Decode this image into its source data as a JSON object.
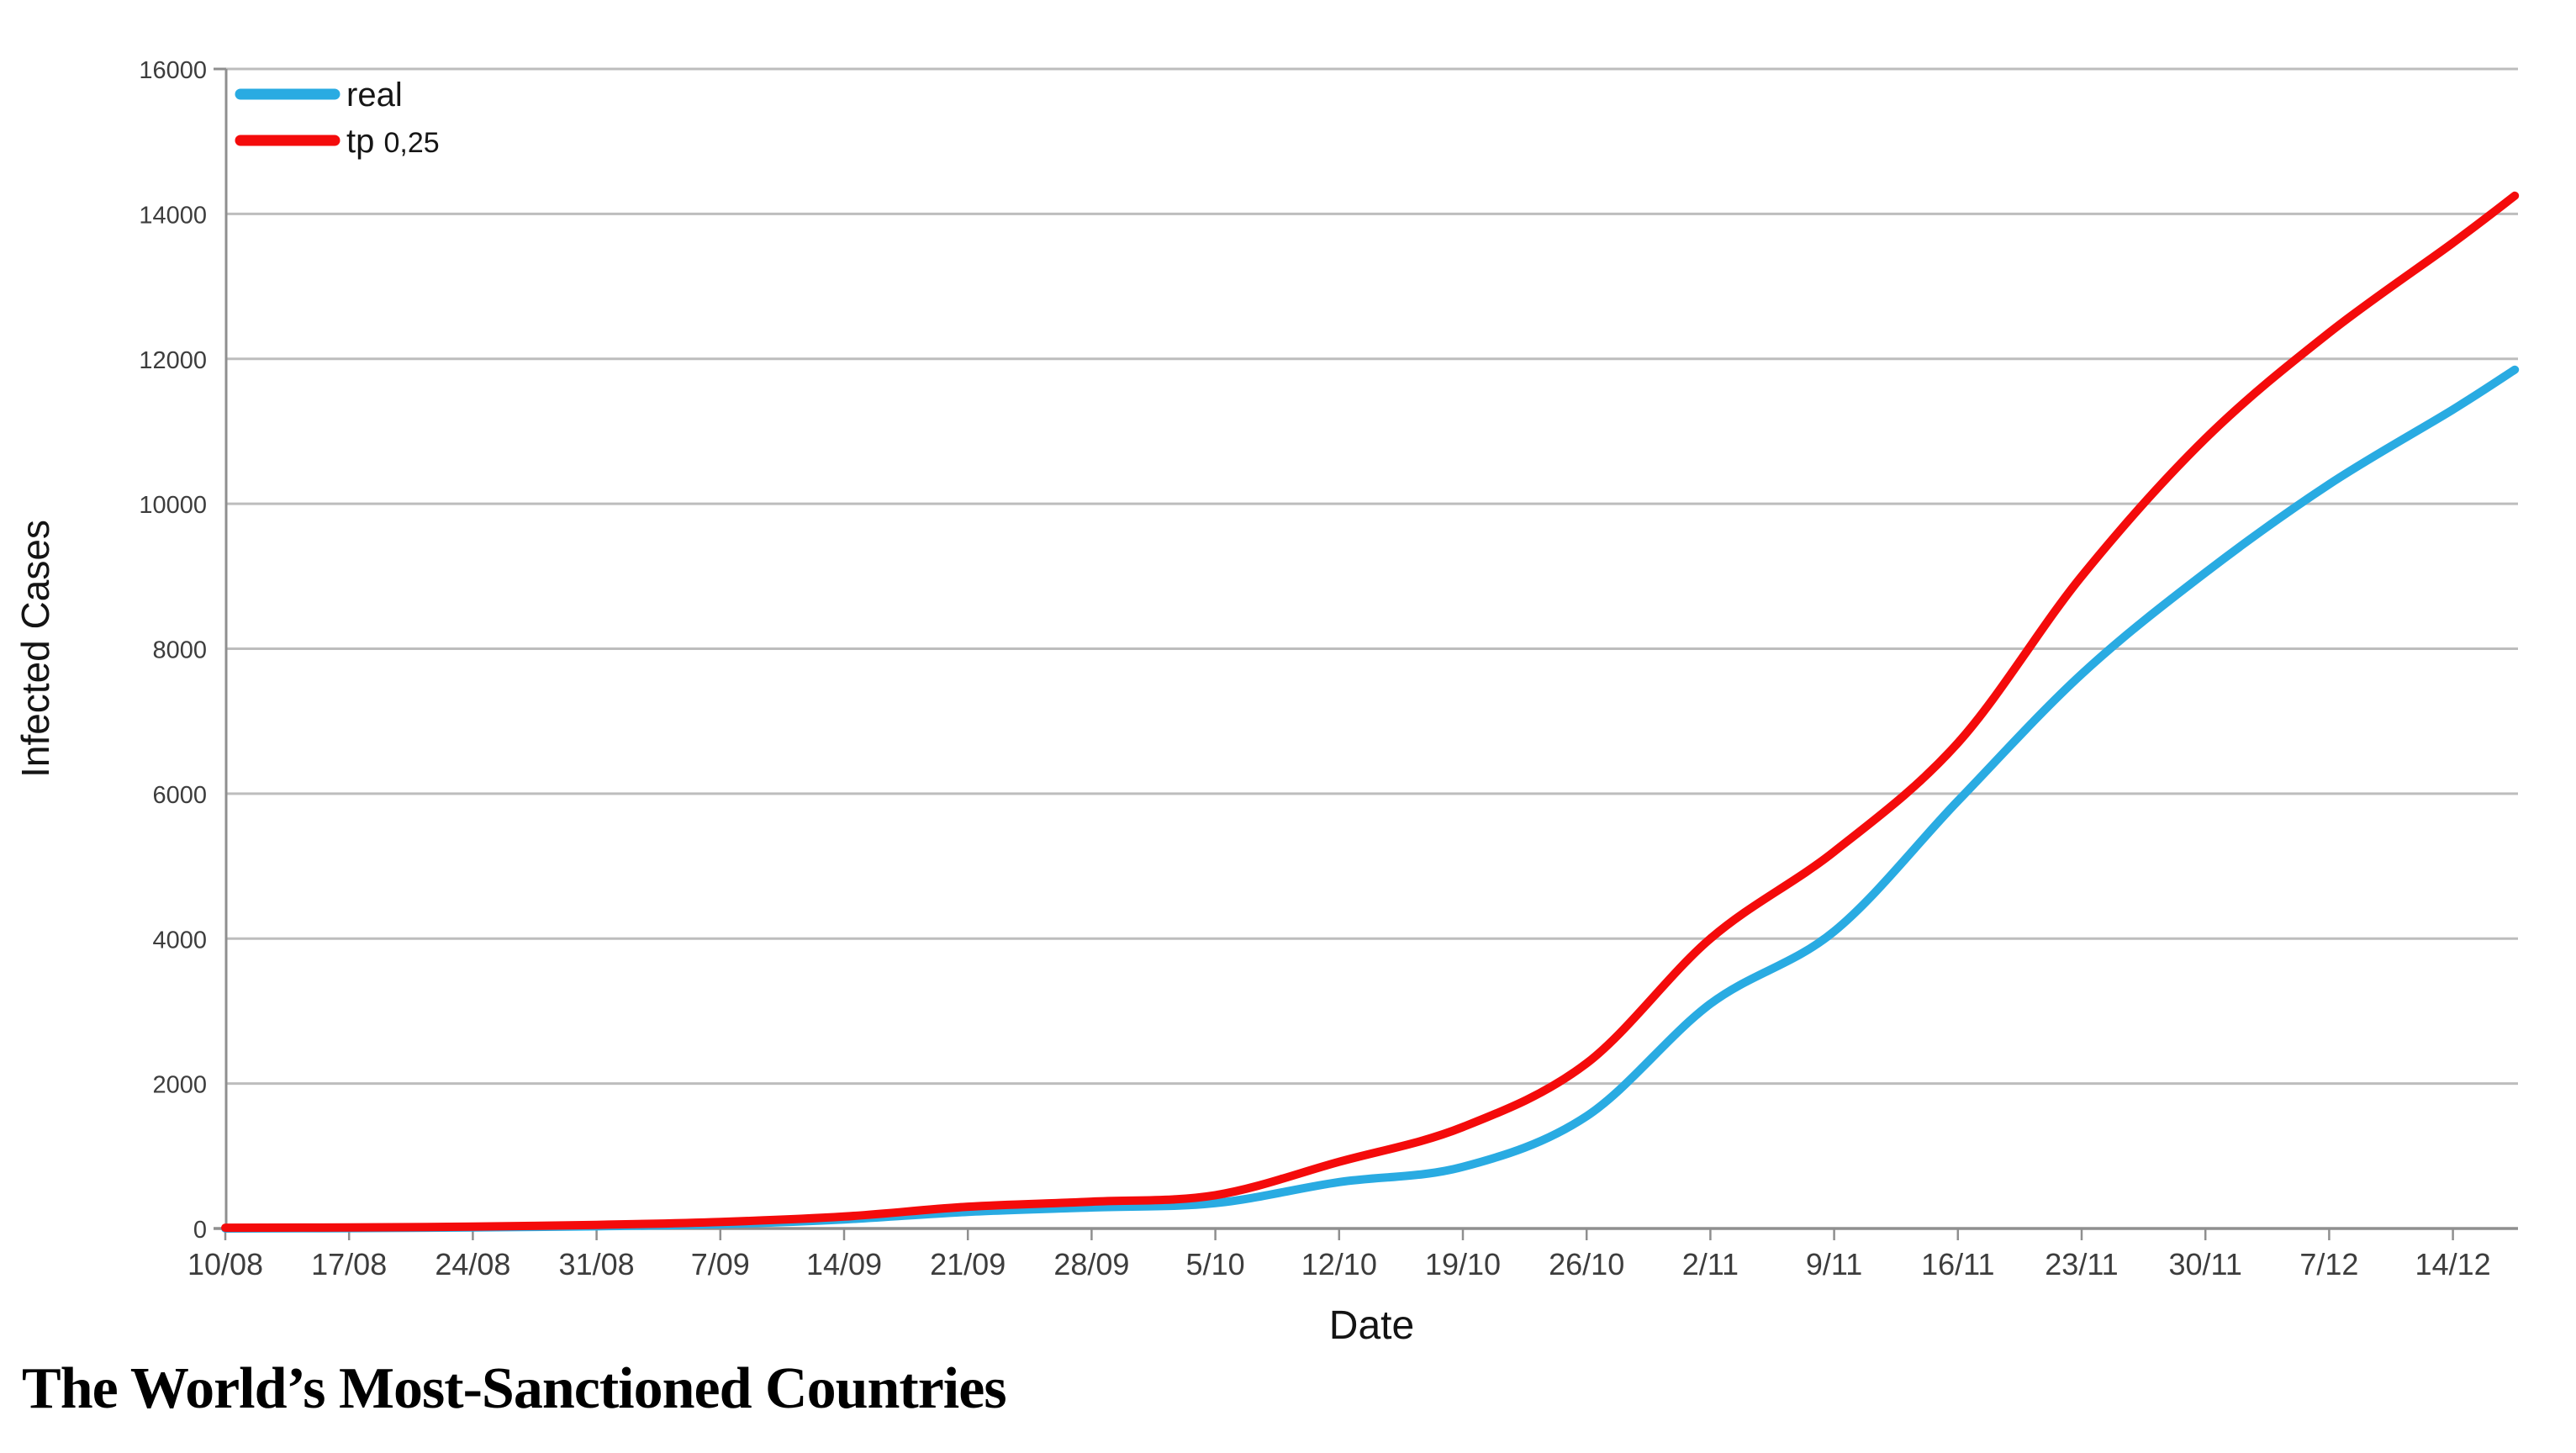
{
  "page": {
    "heading": "The World’s Most-Sanctioned Countries"
  },
  "chart_data": {
    "type": "line",
    "title": "",
    "xlabel": "Date",
    "ylabel": "Infected Cases",
    "ylim": [
      0,
      16000
    ],
    "y_tick_step": 2000,
    "y_ticks": [
      0,
      2000,
      4000,
      6000,
      8000,
      10000,
      12000,
      14000,
      16000
    ],
    "grid": true,
    "legend_position": "top-left",
    "categories": [
      "10/08",
      "17/08",
      "24/08",
      "31/08",
      "7/09",
      "14/09",
      "21/09",
      "28/09",
      "5/10",
      "12/10",
      "19/10",
      "26/10",
      "2/11",
      "9/11",
      "16/11",
      "23/11",
      "30/11",
      "7/12",
      "14/12"
    ],
    "x_weeks": [
      0,
      1,
      2,
      3,
      4,
      5,
      6,
      7,
      8,
      9,
      10,
      11,
      12,
      13,
      14,
      15,
      16,
      17,
      18,
      18.5
    ],
    "series": [
      {
        "name": "real",
        "color": "#29ABE2",
        "values": [
          0,
          5,
          15,
          30,
          60,
          125,
          230,
          290,
          350,
          640,
          850,
          1550,
          3100,
          4100,
          5900,
          7650,
          9050,
          10270,
          11300,
          11850
        ]
      },
      {
        "name": "tp 0,25",
        "color": "#F40B0B",
        "values": [
          10,
          15,
          25,
          50,
          90,
          165,
          300,
          370,
          460,
          920,
          1400,
          2280,
          4000,
          5200,
          6700,
          9000,
          10900,
          12360,
          13600,
          14250
        ]
      }
    ],
    "colors": {
      "grid": "#BDBDBD",
      "axis": "#8F8F8F",
      "tick_text": "#3D3D3D",
      "axis_title_text": "#141414"
    }
  }
}
